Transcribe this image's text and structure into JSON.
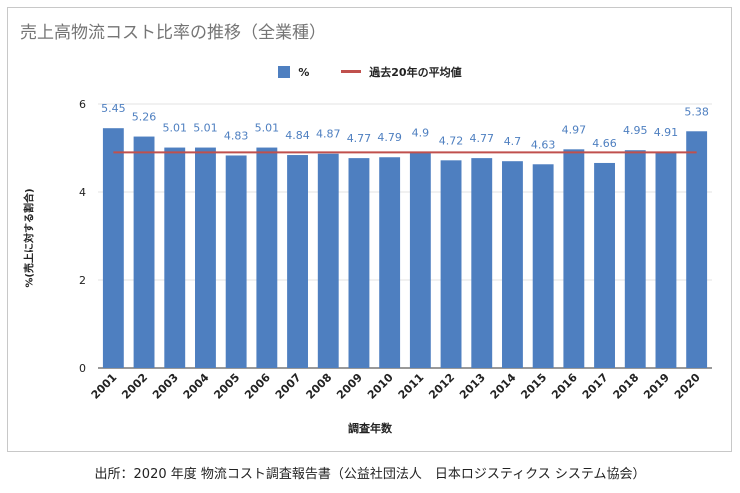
{
  "chart_title": "売上高物流コスト比率の推移（全業種）",
  "footer": "出所：2020 年度 物流コスト調査報告書（公益社団法人　日本ロジスティクス システム協会）",
  "colors": {
    "bar": "#4e7fc0",
    "average_line": "#c0504d",
    "grid": "#e3e3e3",
    "axis": "#333333"
  },
  "chart_data": {
    "type": "bar",
    "title": "売上高物流コスト比率の推移（全業種）",
    "xlabel": "調査年数",
    "ylabel": "%(売上に対する割合)",
    "ylim": [
      0,
      6
    ],
    "yticks": [
      "0",
      "2",
      "4",
      "6"
    ],
    "grid": true,
    "legend_position": "top-center",
    "categories": [
      "2001",
      "2002",
      "2003",
      "2004",
      "2005",
      "2006",
      "2007",
      "2008",
      "2009",
      "2010",
      "2011",
      "2012",
      "2013",
      "2014",
      "2015",
      "2016",
      "2017",
      "2018",
      "2019",
      "2020"
    ],
    "series": [
      {
        "name": "%",
        "type": "bar",
        "values": [
          5.45,
          5.26,
          5.01,
          5.01,
          4.83,
          5.01,
          4.84,
          4.87,
          4.77,
          4.79,
          4.9,
          4.72,
          4.77,
          4.7,
          4.63,
          4.97,
          4.66,
          4.95,
          4.91,
          5.38
        ],
        "labels": [
          "5.45",
          "5.26",
          "5.01",
          "5.01",
          "4.83",
          "5.01",
          "4.84",
          "4.87",
          "4.77",
          "4.79",
          "4.9",
          "4.72",
          "4.77",
          "4.7",
          "4.63",
          "4.97",
          "4.66",
          "4.95",
          "4.91",
          "5.38"
        ]
      },
      {
        "name": "過去20年の平均値",
        "type": "line",
        "value": 4.9
      }
    ]
  }
}
